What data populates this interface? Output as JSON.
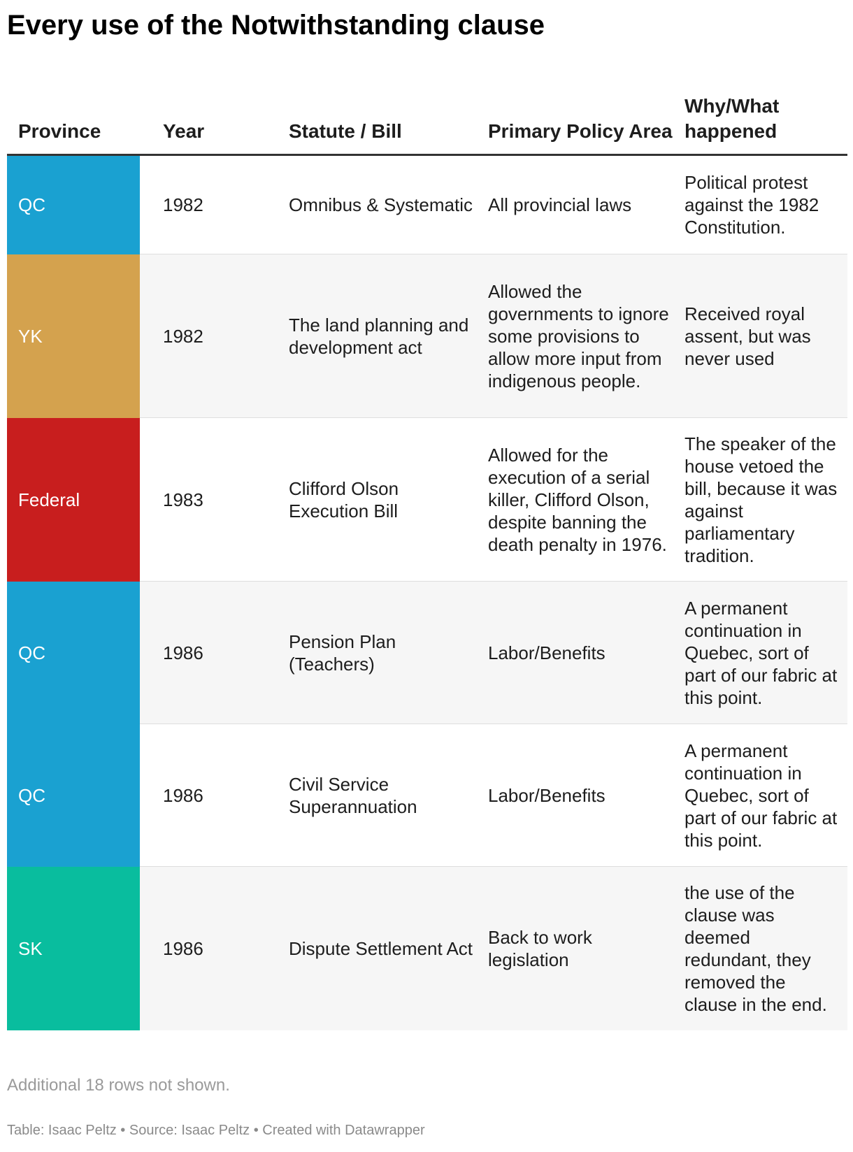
{
  "title": "Every use of the Notwithstanding clause",
  "chart_data": {
    "type": "table",
    "title": "Every use of the Notwithstanding clause",
    "columns": [
      "Province",
      "Year",
      "Statute / Bill",
      "Primary Policy Area",
      "Why/What happened"
    ],
    "province_colors": {
      "QC": "#1aa1d1",
      "YK": "#d4a24e",
      "Federal": "#c81e1e",
      "SK": "#09bd9e"
    },
    "rows": [
      {
        "province": "QC",
        "year": "1982",
        "statute": "Omnibus & Systematic",
        "area": "All provincial laws",
        "why": "Political protest against the 1982 Constitution."
      },
      {
        "province": "YK",
        "year": "1982",
        "statute": "The land planning and development act",
        "area": "Allowed the governments to ignore some provisions to allow more input from indigenous people.",
        "why": "Received royal assent, but was never used"
      },
      {
        "province": "Federal",
        "year": "1983",
        "statute": "Clifford Olson Execution Bill",
        "area": "Allowed for the execution of a serial killer, Clifford Olson, despite banning the death penalty in 1976.",
        "why": "The speaker of the house vetoed the bill, because it was against parliamentary tradition."
      },
      {
        "province": "QC",
        "year": "1986",
        "statute": "Pension Plan (Teachers)",
        "area": "Labor/Benefits",
        "why": "A permanent continuation in Quebec, sort of part of our fabric at this point."
      },
      {
        "province": "QC",
        "year": "1986",
        "statute": "Civil Service Superannuation",
        "area": "Labor/Benefits",
        "why": "A permanent continuation in Quebec, sort of part of our fabric at this point."
      },
      {
        "province": "SK",
        "year": "1986",
        "statute": "Dispute Settlement Act",
        "area": "Back to work legislation",
        "why": "the use of the clause was deemed redundant, they removed the clause in the end."
      }
    ]
  },
  "note": "Additional 18 rows not shown.",
  "footer": "Table: Isaac Peltz • Source: Isaac Peltz • Created with Datawrapper"
}
